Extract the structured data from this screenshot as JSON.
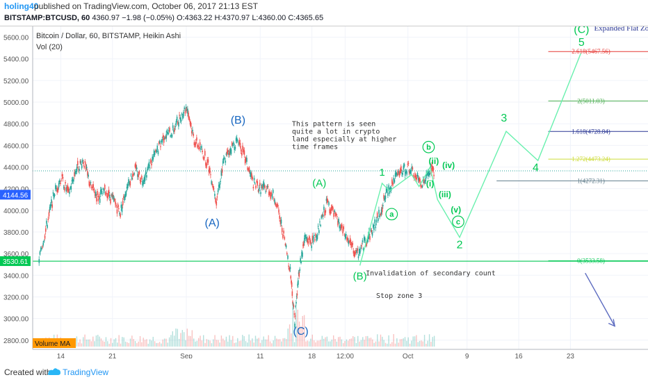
{
  "header": {
    "author": "holing40",
    "published": "published on TradingView.com, October 06, 2017 21:13 EST",
    "symbol": "BITSTAMP:BTCUSD, 60",
    "last": "4360.97",
    "change": "−1.98 (−0.05%)",
    "open": "O:4363.22",
    "high": "H:4370.97",
    "low": "L:4360.00",
    "close": "C:4365.65"
  },
  "legend": {
    "title": "Bitcoin / Dollar, 60, BITSTAMP, Heikin Ashi",
    "vol": "Vol (20)",
    "volume_ma": "Volume MA"
  },
  "footer": {
    "created": "Created with",
    "brand": "TradingView"
  },
  "colors": {
    "wave_green": "#00c853",
    "wave_blue": "#1565c0",
    "price_green": "#26a69a",
    "price_red": "#ef5350",
    "fib_red": "#e53935",
    "fib_green": "#4caf50",
    "fib_blue": "#283593",
    "fib_olive": "#cddc39"
  },
  "chart_data": {
    "type": "line",
    "title": "Bitcoin / Dollar, 60, BITSTAMP, Heikin Ashi",
    "ylim": [
      2800,
      5600
    ],
    "y_ticks": [
      2800,
      3000,
      3200,
      3400,
      3600,
      3800,
      4000,
      4200,
      4400,
      4600,
      4800,
      5000,
      5200,
      5400,
      5600
    ],
    "y_tick_labels": [
      "2800.00",
      "3000.00",
      "3200.00",
      "3400.00",
      "3600.00",
      "3800.00",
      "4000.00",
      "4200.00",
      "4400.00",
      "4600.00",
      "4800.00",
      "5000.00",
      "5200.00",
      "5400.00",
      "5600.00"
    ],
    "x_tick_labels": [
      "14",
      "21",
      "Sep",
      "11",
      "18",
      "12:00",
      "Oct",
      "9",
      "16",
      "23"
    ],
    "x_tick_days": [
      -17,
      -10,
      0,
      10,
      17,
      21.5,
      30,
      38,
      45,
      52
    ],
    "price_badges": [
      {
        "label": "4144.56",
        "value": 4144.56,
        "color": "#2962ff"
      },
      {
        "label": "3530.61",
        "value": 3530.61,
        "color": "#00c853"
      }
    ],
    "price_path": [
      {
        "x": -20,
        "y": 3550
      },
      {
        "x": -19,
        "y": 3850
      },
      {
        "x": -18,
        "y": 4150
      },
      {
        "x": -17,
        "y": 4300
      },
      {
        "x": -16,
        "y": 4150
      },
      {
        "x": -15,
        "y": 4380
      },
      {
        "x": -14,
        "y": 4460
      },
      {
        "x": -13,
        "y": 4220
      },
      {
        "x": -12,
        "y": 4120
      },
      {
        "x": -11,
        "y": 4180
      },
      {
        "x": -10,
        "y": 4100
      },
      {
        "x": -9,
        "y": 3980
      },
      {
        "x": -8,
        "y": 4250
      },
      {
        "x": -7,
        "y": 4380
      },
      {
        "x": -6,
        "y": 4280
      },
      {
        "x": -5,
        "y": 4420
      },
      {
        "x": -4,
        "y": 4550
      },
      {
        "x": -3,
        "y": 4700
      },
      {
        "x": -2,
        "y": 4720
      },
      {
        "x": -1,
        "y": 4850
      },
      {
        "x": 0,
        "y": 4960
      },
      {
        "x": 1,
        "y": 4650
      },
      {
        "x": 2,
        "y": 4560
      },
      {
        "x": 3,
        "y": 4400
      },
      {
        "x": 4,
        "y": 4100
      },
      {
        "x": 5,
        "y": 4450
      },
      {
        "x": 6,
        "y": 4580
      },
      {
        "x": 7,
        "y": 4650
      },
      {
        "x": 8,
        "y": 4450
      },
      {
        "x": 9,
        "y": 4250
      },
      {
        "x": 10,
        "y": 4200
      },
      {
        "x": 11,
        "y": 4200
      },
      {
        "x": 12,
        "y": 4100
      },
      {
        "x": 13,
        "y": 3800
      },
      {
        "x": 14,
        "y": 3450
      },
      {
        "x": 14.6,
        "y": 2980
      },
      {
        "x": 15.2,
        "y": 3450
      },
      {
        "x": 16,
        "y": 3750
      },
      {
        "x": 17,
        "y": 3700
      },
      {
        "x": 18,
        "y": 3850
      },
      {
        "x": 19,
        "y": 4080
      },
      {
        "x": 20,
        "y": 3950
      },
      {
        "x": 21,
        "y": 3820
      },
      {
        "x": 22,
        "y": 3700
      },
      {
        "x": 23,
        "y": 3580
      },
      {
        "x": 24,
        "y": 3700
      },
      {
        "x": 25,
        "y": 3800
      },
      {
        "x": 26,
        "y": 3950
      },
      {
        "x": 27,
        "y": 4150
      },
      {
        "x": 28,
        "y": 4280
      },
      {
        "x": 29,
        "y": 4350
      },
      {
        "x": 30,
        "y": 4400
      },
      {
        "x": 31,
        "y": 4300
      },
      {
        "x": 32,
        "y": 4250
      },
      {
        "x": 33,
        "y": 4370
      },
      {
        "x": 33.5,
        "y": 4360
      }
    ],
    "wave_path": [
      {
        "x": 23.5,
        "y": 3490
      },
      {
        "x": 26.5,
        "y": 4250
      },
      {
        "x": 27.5,
        "y": 4180
      },
      {
        "x": 30.5,
        "y": 4330
      },
      {
        "x": 31.5,
        "y": 4220
      },
      {
        "x": 33,
        "y": 4400
      },
      {
        "x": 34,
        "y": 4100
      },
      {
        "x": 37,
        "y": 3750
      },
      {
        "x": 43.3,
        "y": 4730
      },
      {
        "x": 47.6,
        "y": 4460
      },
      {
        "x": 53.4,
        "y": 5450
      }
    ],
    "projection": [
      {
        "x": 54,
        "y": 3420
      },
      {
        "x": 58,
        "y": 2930
      }
    ],
    "support_levels": [
      {
        "value": 4365,
        "color": "#26a69a",
        "style": "dotted"
      },
      {
        "value": 3530,
        "color": "#00c853",
        "style": "solid"
      }
    ],
    "fib_levels": [
      {
        "ratio": "2.618",
        "value": 5467.56,
        "label": "2.618(5467.56)",
        "color": "#e53935"
      },
      {
        "ratio": "2",
        "value": 5011.03,
        "label": "2(5011.03)",
        "color": "#4caf50"
      },
      {
        "ratio": "1.618",
        "value": 4728.84,
        "label": "1.618(4728.84)",
        "color": "#283593"
      },
      {
        "ratio": "1.272",
        "value": 4473.24,
        "label": "1.272(4473.24)",
        "color": "#cddc39"
      },
      {
        "ratio": "1",
        "value": 4272.31,
        "label": "1(4272.31)",
        "color": "#607d8b"
      },
      {
        "ratio": "0",
        "value": 3533.58,
        "label": "0(3533.58)",
        "color": "#00c853"
      }
    ],
    "wave_labels": [
      {
        "text": "(B)",
        "x": 7,
        "y": 4800,
        "color": "#1565c0",
        "size": 16
      },
      {
        "text": "(A)",
        "x": 3.5,
        "y": 3850,
        "color": "#1565c0",
        "size": 16
      },
      {
        "text": "(C)",
        "x": 15.5,
        "y": 2850,
        "color": "#1565c0",
        "size": 16
      },
      {
        "text": "(A)",
        "x": 18,
        "y": 4220,
        "color": "#00c853",
        "size": 15
      },
      {
        "text": "(B)",
        "x": 23.5,
        "y": 3360,
        "color": "#00c853",
        "size": 15
      },
      {
        "text": "1",
        "x": 26.5,
        "y": 4320,
        "color": "#00c853",
        "size": 15
      },
      {
        "text": "a",
        "x": 27.8,
        "y": 3940,
        "color": "#00c853",
        "size": 11,
        "circle": true
      },
      {
        "text": "b",
        "x": 32.8,
        "y": 4560,
        "color": "#00c853",
        "size": 11,
        "circle": true
      },
      {
        "text": "(ii)",
        "x": 33.5,
        "y": 4430,
        "color": "#00c853",
        "size": 12
      },
      {
        "text": "(iv)",
        "x": 35.5,
        "y": 4390,
        "color": "#00c853",
        "size": 12
      },
      {
        "text": "(i)",
        "x": 33,
        "y": 4220,
        "color": "#00c853",
        "size": 12
      },
      {
        "text": "(iii)",
        "x": 35,
        "y": 4120,
        "color": "#00c853",
        "size": 12
      },
      {
        "text": "(v)",
        "x": 36.5,
        "y": 3980,
        "color": "#00c853",
        "size": 12
      },
      {
        "text": "c",
        "x": 36.8,
        "y": 3870,
        "color": "#00c853",
        "size": 11,
        "circle": true
      },
      {
        "text": "2",
        "x": 37,
        "y": 3650,
        "color": "#00c853",
        "size": 16
      },
      {
        "text": "3",
        "x": 43,
        "y": 4820,
        "color": "#00c853",
        "size": 16
      },
      {
        "text": "4",
        "x": 47.3,
        "y": 4360,
        "color": "#00c853",
        "size": 16
      },
      {
        "text": "5",
        "x": 53.5,
        "y": 5520,
        "color": "#00c853",
        "size": 16
      },
      {
        "text": "(C)",
        "x": 53.5,
        "y": 5640,
        "color": "#00c853",
        "size": 16
      }
    ],
    "annotations": [
      {
        "lines": [
          "This pattern is seen",
          "quite a lot in crypto",
          "land especially at higher",
          "time frames"
        ],
        "x": 14.3,
        "y": 4780,
        "font": "mono",
        "color": "#333"
      },
      {
        "lines": [
          "Invalidation of secondary count"
        ],
        "x": 24.3,
        "y": 3400,
        "font": "mono",
        "color": "#333"
      },
      {
        "lines": [
          "Stop zone 3"
        ],
        "x": 25.7,
        "y": 3190,
        "font": "mono",
        "color": "#333"
      },
      {
        "lines": [
          "Expanded Flat Zone"
        ],
        "x": 55.2,
        "y": 5660,
        "font": "serif",
        "color": "#283593"
      }
    ]
  }
}
